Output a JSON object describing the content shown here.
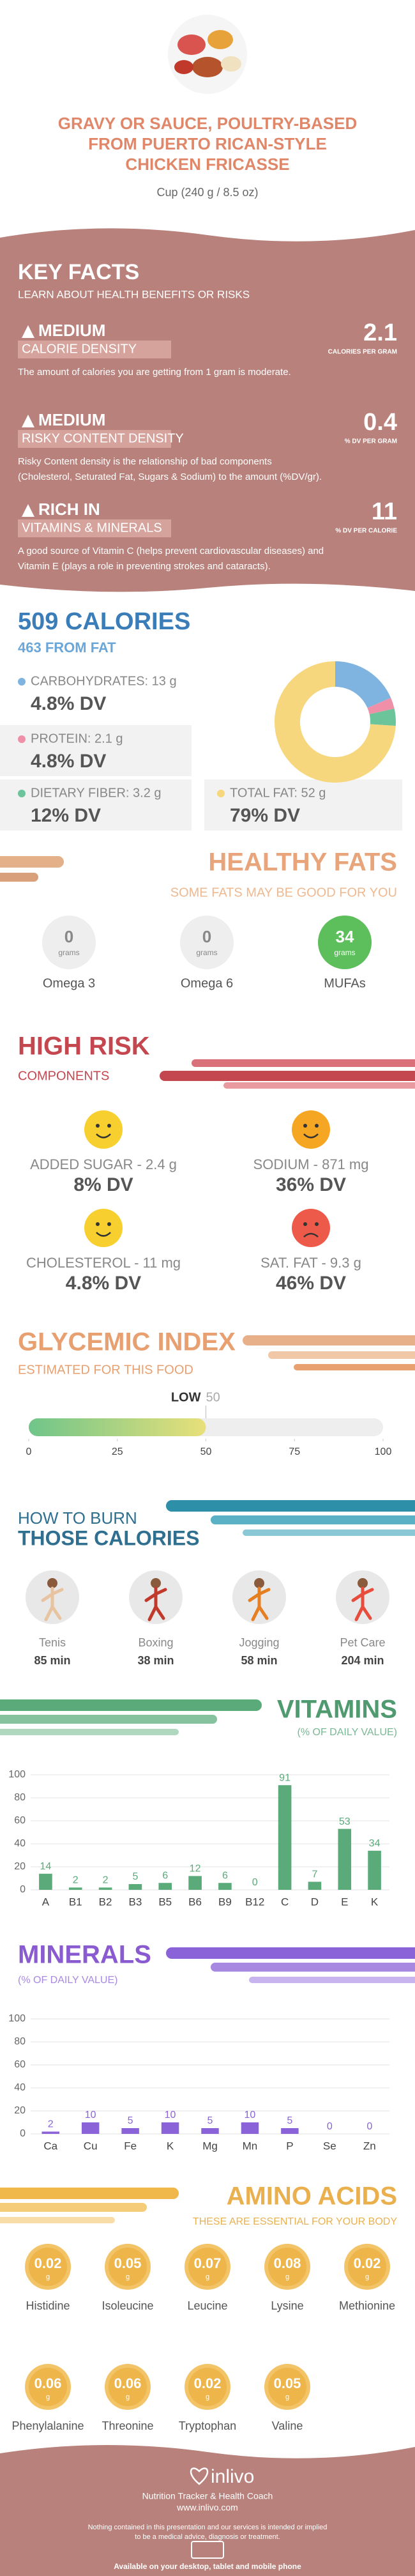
{
  "header": {
    "title": [
      "GRAVY OR SAUCE, POULTRY-BASED",
      "FROM PUERTO RICAN-STYLE",
      "CHICKEN FRICASSE"
    ],
    "serving": "Cup (240 g / 8.5 oz)"
  },
  "key_facts": {
    "title": "KEY FACTS",
    "subtitle": "LEARN ABOUT HEALTH BENEFITS OR RISKS",
    "items": [
      {
        "level": "MEDIUM",
        "name": "CALORIE DENSITY",
        "value": "2.1",
        "unit": "CALORIES PER GRAM",
        "description": [
          "The amount of calories you are getting from 1 gram is moderate."
        ]
      },
      {
        "level": "MEDIUM",
        "name": "RISKY CONTENT DENSITY",
        "value": "0.4",
        "unit": "% DV PER GRAM",
        "description": [
          "Risky Content density is the relationship of bad components",
          "(Cholesterol, Seturated Fat, Sugars & Sodium) to the amount (%DV/gr)."
        ]
      },
      {
        "level": "RICH  IN",
        "name": "VITAMINS & MINERALS",
        "value": "11",
        "unit": "% DV PER CALORIE",
        "description": [
          "A good source of Vitamin C (helps prevent cardiovascular diseases) and",
          "Vitamin E (plays a role in preventing strokes and cataracts)."
        ]
      }
    ]
  },
  "calories": {
    "title": "509 CALORIES",
    "subtitle": "463 FROM FAT",
    "items": [
      {
        "name": "CARBOHYDRATES: 13 g",
        "dv": "4.8% DV",
        "color": "#7fb3e0"
      },
      {
        "name": "PROTEIN: 2.1 g",
        "dv": "4.8% DV",
        "color": "#f08fa8"
      },
      {
        "name": "DIETARY FIBER: 3.2 g",
        "dv": "12% DV",
        "color": "#6cc59a"
      },
      {
        "name": "TOTAL FAT: 52 g",
        "dv": "79% DV",
        "color": "#f7d77e"
      }
    ],
    "donut": {
      "type": "pie",
      "values": [
        13,
        2.1,
        3.2,
        52
      ],
      "colors": [
        "#7fb3e0",
        "#f08fa8",
        "#6cc59a",
        "#f7d77e"
      ]
    }
  },
  "healthy_fats": {
    "title": "HEALTHY FATS",
    "subtitle": "SOME FATS MAY BE GOOD FOR YOU",
    "items": [
      {
        "name": "Omega 3",
        "value": "0",
        "unit": "grams",
        "color": "#eeeeee"
      },
      {
        "name": "Omega 6",
        "value": "0",
        "unit": "grams",
        "color": "#eeeeee"
      },
      {
        "name": "MUFAs",
        "value": "34",
        "unit": "grams",
        "color": "#5cbf5c"
      }
    ]
  },
  "high_risk": {
    "title": "HIGH RISK",
    "subtitle": "COMPONENTS",
    "items": [
      {
        "name": "ADDED SUGAR - 2.4 g",
        "dv": "8% DV",
        "color": "#f7cf2f",
        "face": "happy"
      },
      {
        "name": "SODIUM - 871 mg",
        "dv": "36% DV",
        "color": "#f5a623",
        "face": "happy"
      },
      {
        "name": "CHOLESTEROL - 11 mg",
        "dv": "4.8% DV",
        "color": "#f7cf2f",
        "face": "happy"
      },
      {
        "name": "SAT. FAT - 9.3 g",
        "dv": "46% DV",
        "color": "#ee5a4a",
        "face": "sad"
      }
    ]
  },
  "glycemic": {
    "title": "GLYCEMIC INDEX",
    "subtitle": "ESTIMATED FOR THIS FOOD",
    "level": "LOW",
    "value": 50,
    "xlim": [
      0,
      100
    ],
    "xticks": [
      0,
      25,
      50,
      75,
      100
    ]
  },
  "burn": {
    "title": "HOW TO BURN",
    "subtitle": "THOSE CALORIES",
    "items": [
      {
        "name": "Tenis",
        "time": "85 min"
      },
      {
        "name": "Boxing",
        "time": "38 min"
      },
      {
        "name": "Jogging",
        "time": "58 min"
      },
      {
        "name": "Pet Care",
        "time": "204 min"
      }
    ]
  },
  "vitamins": {
    "title": "VITAMINS",
    "subtitle": "(% OF DAILY VALUE)",
    "chart": {
      "type": "bar",
      "categories": [
        "A",
        "B1",
        "B2",
        "B3",
        "B5",
        "B6",
        "B9",
        "B12",
        "C",
        "D",
        "E",
        "K"
      ],
      "values": [
        14,
        2,
        2,
        5,
        6,
        12,
        6,
        0,
        91,
        7,
        53,
        34
      ],
      "color": "#5aaa7a",
      "ylim": [
        0,
        100
      ],
      "yticks": [
        0,
        20,
        40,
        60,
        80,
        100
      ],
      "grid": true
    }
  },
  "minerals": {
    "title": "MINERALS",
    "subtitle": "(% OF DAILY VALUE)",
    "chart": {
      "type": "bar",
      "categories": [
        "Ca",
        "Cu",
        "Fe",
        "K",
        "Mg",
        "Mn",
        "P",
        "Se",
        "Zn"
      ],
      "values": [
        2,
        10,
        5,
        10,
        5,
        10,
        5,
        0,
        0
      ],
      "color": "#8a63d8",
      "ylim": [
        0,
        100
      ],
      "yticks": [
        0,
        20,
        40,
        60,
        80,
        100
      ],
      "grid": true
    }
  },
  "amino_acids": {
    "title": "AMINO ACIDS",
    "subtitle": "THESE ARE ESSENTIAL FOR YOUR BODY",
    "unit": "g",
    "items": [
      {
        "name": "Histidine",
        "value": "0.02"
      },
      {
        "name": "Isoleucine",
        "value": "0.05"
      },
      {
        "name": "Leucine",
        "value": "0.07"
      },
      {
        "name": "Lysine",
        "value": "0.08"
      },
      {
        "name": "Methionine",
        "value": "0.02"
      },
      {
        "name": "Phenylalanine",
        "value": "0.06"
      },
      {
        "name": "Threonine",
        "value": "0.06"
      },
      {
        "name": "Tryptophan",
        "value": "0.02"
      },
      {
        "name": "Valine",
        "value": "0.05"
      }
    ]
  },
  "footer": {
    "brand": "inlivo",
    "tagline": "Nutrition Tracker & Health Coach",
    "url": "www.inlivo.com",
    "disclaimer": [
      "Nothing contained in this presentation and our services is intended or implied",
      "to be a medical advice, diagnosis or treatment."
    ],
    "available": "Available on your desktop, tablet and mobile phone"
  }
}
